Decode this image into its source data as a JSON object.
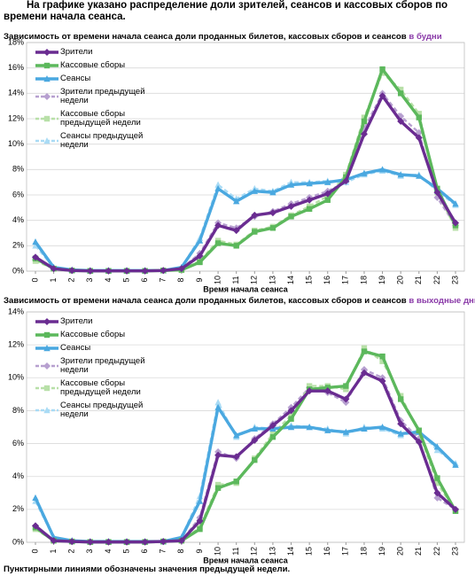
{
  "heading": "На графике указано распределение доли зрителей, сеансов и кассовых сборов по времени начала сеанса.",
  "note": "Пунктирными линиями обозначены значения предыдущей недели.",
  "chart_data": [
    {
      "type": "line",
      "title": "Зависимость от времени начала сеанса доли проданных билетов, кассовых сборов и сеансов",
      "title_highlight": "в будни",
      "xlabel": "Время начала сеанса",
      "categories": [
        "0",
        "1",
        "2",
        "3",
        "4",
        "5",
        "6",
        "7",
        "8",
        "9",
        "10",
        "11",
        "12",
        "13",
        "14",
        "15",
        "16",
        "17",
        "18",
        "19",
        "20",
        "21",
        "22",
        "23"
      ],
      "ylim": [
        0,
        18
      ],
      "yticks": [
        {
          "value": 0,
          "label": "0%"
        },
        {
          "value": 2,
          "label": "2%"
        },
        {
          "value": 4,
          "label": "4%"
        },
        {
          "value": 6,
          "label": "6%"
        },
        {
          "value": 8,
          "label": "8%"
        },
        {
          "value": 10,
          "label": "10%"
        },
        {
          "value": 12,
          "label": "12%"
        },
        {
          "value": 14,
          "label": "14%"
        },
        {
          "value": 16,
          "label": "16%"
        },
        {
          "value": 18,
          "label": "18%"
        }
      ],
      "grid": true,
      "legend": "upper left",
      "series": [
        {
          "name": "Зрители",
          "color": "#6a2c91",
          "marker": "diamond",
          "dashed": false,
          "values": [
            1.1,
            0.2,
            0.05,
            0.02,
            0.02,
            0.02,
            0.02,
            0.05,
            0.2,
            1.2,
            3.6,
            3.2,
            4.4,
            4.6,
            5.1,
            5.6,
            6.1,
            7.1,
            10.8,
            13.8,
            11.8,
            10.5,
            6.2,
            3.8
          ]
        },
        {
          "name": "Кассовые сборы",
          "color": "#5cb85c",
          "marker": "square",
          "dashed": false,
          "values": [
            1.0,
            0.2,
            0.05,
            0.02,
            0.02,
            0.02,
            0.02,
            0.05,
            0.1,
            0.7,
            2.2,
            2.0,
            3.1,
            3.4,
            4.3,
            4.9,
            5.6,
            7.4,
            11.8,
            15.9,
            14.0,
            12.1,
            6.5,
            3.6
          ]
        },
        {
          "name": "Сеансы",
          "color": "#4aa8e0",
          "marker": "triangle",
          "dashed": false,
          "values": [
            2.3,
            0.3,
            0.1,
            0.05,
            0.05,
            0.05,
            0.05,
            0.05,
            0.3,
            2.4,
            6.5,
            5.5,
            6.3,
            6.2,
            6.8,
            6.9,
            7.0,
            7.2,
            7.7,
            8.0,
            7.6,
            7.5,
            6.5,
            5.3
          ]
        },
        {
          "name": "Зрители предыдущей недели",
          "color": "#b7a0d0",
          "marker": "diamond",
          "dashed": true,
          "values": [
            0.9,
            0.2,
            0.05,
            0.02,
            0.02,
            0.02,
            0.02,
            0.05,
            0.2,
            1.4,
            3.8,
            3.4,
            4.3,
            4.7,
            5.3,
            5.8,
            6.3,
            7.0,
            11.2,
            14.0,
            12.2,
            10.9,
            5.8,
            3.6
          ]
        },
        {
          "name": "Кассовые сборы предыдущей недели",
          "color": "#b8e0a8",
          "marker": "square",
          "dashed": true,
          "values": [
            0.8,
            0.2,
            0.05,
            0.02,
            0.02,
            0.02,
            0.02,
            0.05,
            0.1,
            0.8,
            2.4,
            2.1,
            3.2,
            3.5,
            4.4,
            5.1,
            5.9,
            7.6,
            12.1,
            15.6,
            14.3,
            12.4,
            6.2,
            3.4
          ]
        },
        {
          "name": "Сеансы предыдущей недели",
          "color": "#a9dbf5",
          "marker": "triangle",
          "dashed": true,
          "values": [
            2.0,
            0.3,
            0.1,
            0.05,
            0.05,
            0.05,
            0.05,
            0.05,
            0.3,
            2.6,
            6.8,
            5.7,
            6.5,
            6.3,
            7.0,
            7.0,
            7.1,
            7.0,
            7.6,
            7.9,
            7.5,
            7.6,
            6.3,
            5.2
          ]
        }
      ]
    },
    {
      "type": "line",
      "title": "Зависимость от времени начала сеанса доли проданных билетов, кассовых сборов и сеансов",
      "title_highlight": "в выходные дни",
      "xlabel": "Время начала сеанса",
      "categories": [
        "0",
        "1",
        "2",
        "3",
        "4",
        "5",
        "6",
        "7",
        "8",
        "9",
        "10",
        "11",
        "12",
        "13",
        "14",
        "15",
        "16",
        "17",
        "18",
        "19",
        "20",
        "21",
        "22",
        "23"
      ],
      "ylim": [
        0,
        14
      ],
      "yticks": [
        {
          "value": 0,
          "label": "0%"
        },
        {
          "value": 2,
          "label": "2%"
        },
        {
          "value": 4,
          "label": "4%"
        },
        {
          "value": 6,
          "label": "6%"
        },
        {
          "value": 8,
          "label": "8%"
        },
        {
          "value": 10,
          "label": "10%"
        },
        {
          "value": 12,
          "label": "12%"
        },
        {
          "value": 14,
          "label": "14%"
        }
      ],
      "grid": true,
      "legend": "upper left",
      "series": [
        {
          "name": "Зрители",
          "color": "#6a2c91",
          "marker": "diamond",
          "dashed": false,
          "values": [
            1.0,
            0.1,
            0.05,
            0.02,
            0.02,
            0.02,
            0.02,
            0.05,
            0.1,
            1.3,
            5.3,
            5.2,
            6.2,
            7.1,
            8.0,
            9.2,
            9.2,
            8.7,
            10.3,
            9.8,
            7.2,
            6.1,
            3.0,
            2.0
          ]
        },
        {
          "name": "Кассовые сборы",
          "color": "#5cb85c",
          "marker": "square",
          "dashed": false,
          "values": [
            0.9,
            0.1,
            0.05,
            0.02,
            0.02,
            0.02,
            0.02,
            0.05,
            0.1,
            0.8,
            3.3,
            3.7,
            5.0,
            6.4,
            7.5,
            9.3,
            9.4,
            9.5,
            11.6,
            11.3,
            8.7,
            6.8,
            3.9,
            1.9
          ]
        },
        {
          "name": "Сеансы",
          "color": "#4aa8e0",
          "marker": "triangle",
          "dashed": false,
          "values": [
            2.7,
            0.3,
            0.1,
            0.05,
            0.05,
            0.05,
            0.05,
            0.05,
            0.3,
            2.5,
            8.2,
            6.5,
            6.9,
            6.9,
            7.0,
            7.0,
            6.8,
            6.7,
            6.9,
            7.0,
            6.6,
            6.7,
            5.8,
            4.7
          ]
        },
        {
          "name": "Зрители предыдущей недели",
          "color": "#b7a0d0",
          "marker": "diamond",
          "dashed": true,
          "values": [
            1.0,
            0.1,
            0.05,
            0.02,
            0.02,
            0.02,
            0.02,
            0.05,
            0.1,
            1.5,
            5.5,
            5.1,
            6.3,
            7.2,
            8.2,
            9.4,
            9.1,
            8.5,
            10.5,
            10.0,
            7.4,
            6.3,
            2.7,
            2.0
          ]
        },
        {
          "name": "Кассовые сборы предыдущей недели",
          "color": "#b8e0a8",
          "marker": "square",
          "dashed": true,
          "values": [
            0.8,
            0.1,
            0.05,
            0.02,
            0.02,
            0.02,
            0.02,
            0.05,
            0.1,
            0.9,
            3.5,
            3.6,
            5.1,
            6.6,
            7.7,
            9.5,
            9.5,
            9.3,
            11.8,
            11.0,
            8.9,
            6.7,
            3.6,
            1.9
          ]
        },
        {
          "name": "Сеансы предыдущей недели",
          "color": "#a9dbf5",
          "marker": "triangle",
          "dashed": true,
          "values": [
            2.5,
            0.3,
            0.1,
            0.05,
            0.05,
            0.05,
            0.05,
            0.05,
            0.3,
            2.8,
            8.5,
            6.4,
            7.0,
            6.9,
            7.1,
            7.0,
            6.9,
            6.6,
            7.0,
            6.9,
            6.5,
            6.8,
            5.6,
            4.8
          ]
        }
      ]
    }
  ]
}
